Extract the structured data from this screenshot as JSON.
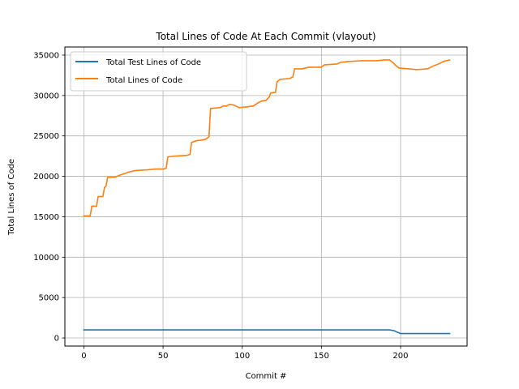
{
  "chart_data": {
    "type": "line",
    "title": "Total Lines of Code At Each Commit (vlayout)",
    "xlabel": "Commit #",
    "ylabel": "Total Lines of Code",
    "xlim": [
      -12,
      242
    ],
    "ylim": [
      -1000,
      36000
    ],
    "xticks": [
      0,
      50,
      100,
      150,
      200
    ],
    "yticks": [
      0,
      5000,
      10000,
      15000,
      20000,
      25000,
      30000,
      35000
    ],
    "grid": true,
    "legend_position": "upper-left",
    "series": [
      {
        "name": "Total Test Lines of Code",
        "color": "#1f77b4",
        "points": [
          [
            0,
            1000
          ],
          [
            193,
            1000
          ],
          [
            196,
            900
          ],
          [
            198,
            700
          ],
          [
            200,
            550
          ],
          [
            231,
            550
          ]
        ]
      },
      {
        "name": "Total Lines of Code",
        "color": "#ff7f0e",
        "points": [
          [
            0,
            15100
          ],
          [
            3,
            15100
          ],
          [
            4,
            15100
          ],
          [
            5,
            16300
          ],
          [
            8,
            16300
          ],
          [
            9,
            17500
          ],
          [
            12,
            17500
          ],
          [
            13,
            18600
          ],
          [
            14,
            18800
          ],
          [
            15,
            19900
          ],
          [
            20,
            19900
          ],
          [
            22,
            20100
          ],
          [
            25,
            20300
          ],
          [
            28,
            20500
          ],
          [
            32,
            20700
          ],
          [
            40,
            20800
          ],
          [
            45,
            20900
          ],
          [
            50,
            20900
          ],
          [
            52,
            21000
          ],
          [
            53,
            22400
          ],
          [
            57,
            22500
          ],
          [
            65,
            22600
          ],
          [
            67,
            22700
          ],
          [
            68,
            24200
          ],
          [
            71,
            24400
          ],
          [
            75,
            24500
          ],
          [
            77,
            24600
          ],
          [
            79,
            24900
          ],
          [
            80,
            28400
          ],
          [
            86,
            28500
          ],
          [
            88,
            28700
          ],
          [
            90,
            28700
          ],
          [
            92,
            28900
          ],
          [
            95,
            28800
          ],
          [
            98,
            28500
          ],
          [
            103,
            28600
          ],
          [
            107,
            28700
          ],
          [
            110,
            29100
          ],
          [
            112,
            29300
          ],
          [
            115,
            29400
          ],
          [
            117,
            29800
          ],
          [
            118,
            30300
          ],
          [
            121,
            30400
          ],
          [
            122,
            31700
          ],
          [
            124,
            32000
          ],
          [
            130,
            32100
          ],
          [
            132,
            32300
          ],
          [
            133,
            33300
          ],
          [
            138,
            33300
          ],
          [
            142,
            33500
          ],
          [
            150,
            33500
          ],
          [
            152,
            33800
          ],
          [
            160,
            33900
          ],
          [
            162,
            34100
          ],
          [
            167,
            34200
          ],
          [
            175,
            34300
          ],
          [
            185,
            34300
          ],
          [
            190,
            34400
          ],
          [
            193,
            34400
          ],
          [
            195,
            34100
          ],
          [
            197,
            33700
          ],
          [
            199,
            33400
          ],
          [
            205,
            33300
          ],
          [
            210,
            33200
          ],
          [
            217,
            33300
          ],
          [
            220,
            33600
          ],
          [
            224,
            33900
          ],
          [
            227,
            34200
          ],
          [
            231,
            34400
          ]
        ]
      }
    ]
  }
}
